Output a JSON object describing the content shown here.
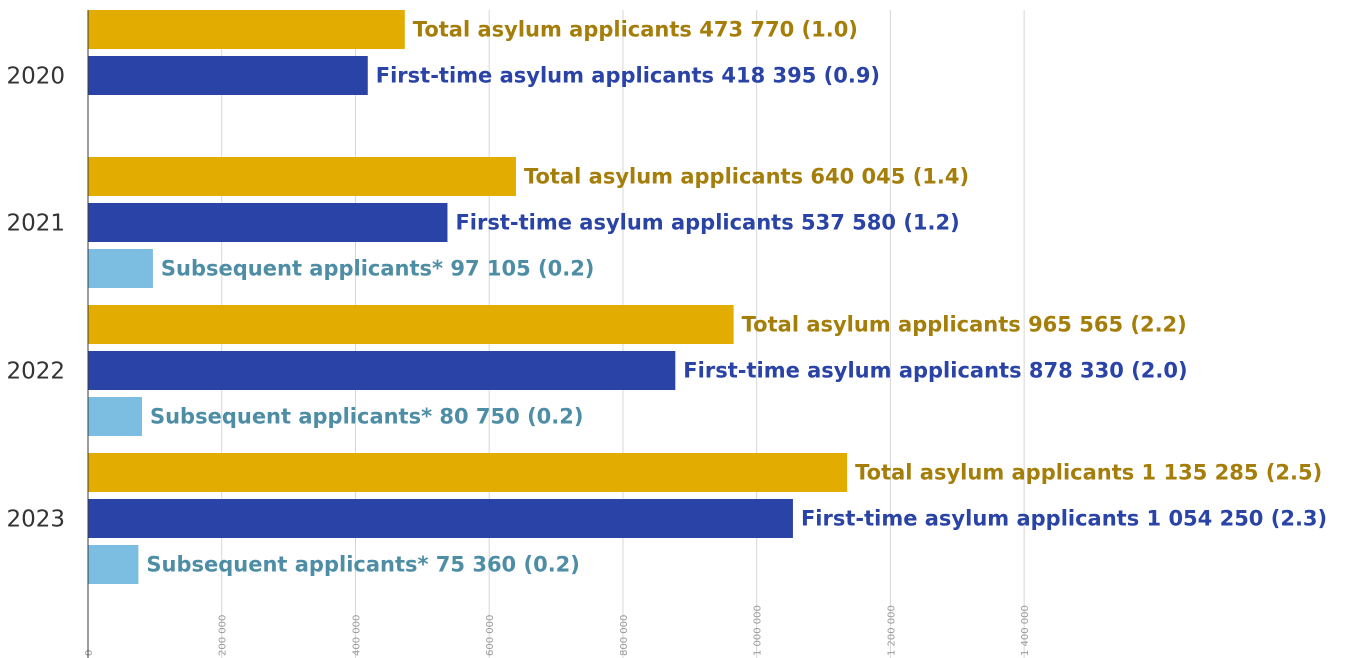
{
  "chart_data": {
    "type": "bar",
    "orientation": "horizontal",
    "categories": [
      "2020",
      "2021",
      "2022",
      "2023"
    ],
    "series": [
      {
        "key": "total",
        "values": [
          473770,
          640045,
          965565,
          1135285
        ],
        "labels": [
          "Total asylum applicants 473 770 (1.0)",
          "Total asylum applicants 640 045 (1.4)",
          "Total asylum applicants 965 565 (2.2)",
          "Total asylum applicants 1 135 285 (2.5)"
        ]
      },
      {
        "key": "first_time",
        "values": [
          418395,
          537580,
          878330,
          1054250
        ],
        "labels": [
          "First-time asylum applicants 418 395 (0.9)",
          "First-time asylum applicants 537 580 (1.2)",
          "First-time asylum applicants 878 330 (2.0)",
          "First-time asylum applicants 1 054 250 (2.3)"
        ]
      },
      {
        "key": "subsequent",
        "values": [
          null,
          97105,
          80750,
          75360
        ],
        "labels": [
          null,
          "Subsequent applicants* 97 105 (0.2)",
          "Subsequent applicants* 80 750 (0.2)",
          "Subsequent applicants* 75 360 (0.2)"
        ]
      }
    ],
    "xlim": [
      0,
      1500000
    ],
    "x_ticks": [
      0,
      200000,
      400000,
      600000,
      800000,
      1000000,
      1200000,
      1400000
    ],
    "x_tick_labels": [
      "0",
      "200 000",
      "400 000",
      "600 000",
      "800 000",
      "1 000 000",
      "1 200 000",
      "1 400 000"
    ],
    "grid": true,
    "legend": "none",
    "colors": {
      "total_bar": "#e3ac00",
      "total_text": "#a57e0a",
      "first_time_bar": "#2a43a6",
      "first_time_text": "#2a43a6",
      "subsequent_bar": "#7cbde2",
      "subsequent_text": "#4d8da6",
      "grid": "#d6d6d6",
      "axis": "#3a3a3a"
    }
  }
}
